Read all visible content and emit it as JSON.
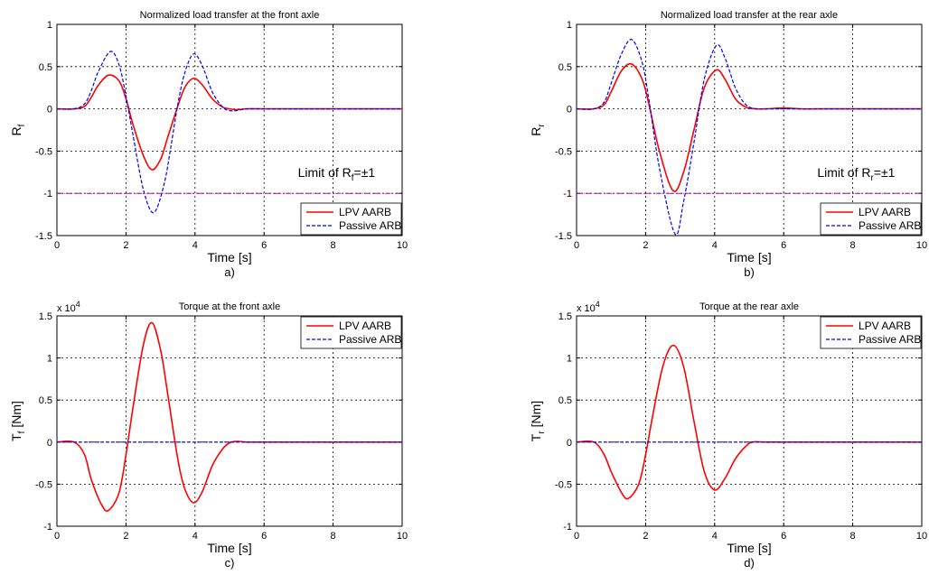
{
  "colors": {
    "lpv": "#ff0000",
    "passive": "#0000ff",
    "limit": "#bf00bf",
    "grid": "#000000"
  },
  "chart_data": [
    {
      "type": "line",
      "title": "Normalized load transfer at the front axle",
      "xlabel": "Time [s]",
      "ylabel": {
        "main": "R",
        "sub": "f"
      },
      "caption": "a)",
      "xlim": [
        0,
        10
      ],
      "ylim": [
        -1.5,
        1
      ],
      "xticks": [
        "0",
        "2",
        "4",
        "6",
        "8",
        "10"
      ],
      "yticks": [
        "-1.5",
        "-1",
        "-0.5",
        "0",
        "0.5",
        "1"
      ],
      "yticks_values": [
        -1.5,
        -1,
        -0.5,
        0,
        0.5,
        1
      ],
      "grid": true,
      "legend": "bottom-right",
      "annotation": {
        "pre": "Limit of R",
        "sub": "f",
        "post": "=±1",
        "x": 8.1,
        "y": -0.75
      },
      "limit_line": -1,
      "series": [
        {
          "name": "LPV AARB",
          "style": "solid",
          "x": [
            0,
            0.5,
            0.8,
            1.0,
            1.2,
            1.5,
            1.8,
            2.0,
            2.2,
            2.5,
            2.75,
            3.0,
            3.2,
            3.5,
            3.7,
            3.95,
            4.2,
            4.5,
            4.8,
            5.0,
            5.2,
            5.5,
            6.0,
            6.5,
            7,
            8,
            9,
            10
          ],
          "y": [
            0,
            0,
            0.03,
            0.14,
            0.28,
            0.4,
            0.33,
            0.12,
            -0.18,
            -0.55,
            -0.72,
            -0.6,
            -0.35,
            0.03,
            0.25,
            0.36,
            0.29,
            0.12,
            0.02,
            0,
            -0.01,
            0,
            0,
            0,
            0,
            0,
            0,
            0
          ]
        },
        {
          "name": "Passive ARB",
          "style": "dashed",
          "x": [
            0,
            0.5,
            0.8,
            1.0,
            1.2,
            1.55,
            1.8,
            2.0,
            2.2,
            2.5,
            2.8,
            3.1,
            3.3,
            3.5,
            3.7,
            3.95,
            4.2,
            4.5,
            4.8,
            5.0,
            5.2,
            5.5,
            6.0,
            6.5,
            7,
            8,
            9,
            10
          ],
          "y": [
            0,
            0,
            0.06,
            0.22,
            0.44,
            0.68,
            0.52,
            0.15,
            -0.3,
            -0.95,
            -1.23,
            -0.9,
            -0.45,
            0.05,
            0.42,
            0.65,
            0.52,
            0.2,
            0.02,
            -0.02,
            -0.02,
            0,
            0,
            0,
            0,
            0,
            0,
            0
          ]
        },
        {
          "name": "",
          "style": "dashdot",
          "limit": true,
          "x": [
            0,
            10
          ],
          "y": [
            -1,
            -1
          ]
        }
      ]
    },
    {
      "type": "line",
      "title": "Normalized load transfer at the rear axle",
      "xlabel": "Time [s]",
      "ylabel": {
        "main": "R",
        "sub": "r"
      },
      "caption": "b)",
      "xlim": [
        0,
        10
      ],
      "ylim": [
        -1.5,
        1
      ],
      "xticks": [
        "0",
        "2",
        "4",
        "6",
        "8",
        "10"
      ],
      "yticks": [
        "-1.5",
        "-1",
        "-0.5",
        "0",
        "0.5",
        "1"
      ],
      "yticks_values": [
        -1.5,
        -1,
        -0.5,
        0,
        0.5,
        1
      ],
      "grid": true,
      "legend": "bottom-right",
      "annotation": {
        "pre": "Limit of R",
        "sub": "r",
        "post": "=±1",
        "x": 8.1,
        "y": -0.75
      },
      "limit_line": -1,
      "series": [
        {
          "name": "LPV AARB",
          "style": "solid",
          "x": [
            0,
            0.5,
            0.8,
            1.0,
            1.3,
            1.6,
            1.9,
            2.1,
            2.4,
            2.8,
            3.1,
            3.4,
            3.7,
            4.05,
            4.3,
            4.6,
            4.9,
            5.2,
            5.5,
            6.0,
            6.5,
            7,
            8,
            9,
            10
          ],
          "y": [
            0,
            0,
            0.05,
            0.2,
            0.45,
            0.53,
            0.35,
            0.05,
            -0.5,
            -0.97,
            -0.75,
            -0.25,
            0.25,
            0.46,
            0.35,
            0.12,
            0.02,
            0,
            0,
            0.01,
            0,
            0,
            0,
            0,
            0
          ]
        },
        {
          "name": "Passive ARB",
          "style": "dashed",
          "x": [
            0,
            0.5,
            0.8,
            1.0,
            1.3,
            1.6,
            1.9,
            2.1,
            2.4,
            2.85,
            3.1,
            3.4,
            3.7,
            4.05,
            4.3,
            4.6,
            4.9,
            5.2,
            5.5,
            6.0,
            6.5,
            7,
            8,
            9,
            10
          ],
          "y": [
            0,
            0,
            0.08,
            0.3,
            0.65,
            0.82,
            0.55,
            0.1,
            -0.7,
            -1.48,
            -1.1,
            -0.4,
            0.35,
            0.75,
            0.6,
            0.25,
            0.05,
            0,
            0,
            0,
            0,
            0,
            0,
            0,
            0
          ]
        },
        {
          "name": "",
          "style": "dashdot",
          "limit": true,
          "x": [
            0,
            10
          ],
          "y": [
            -1,
            -1
          ]
        }
      ]
    },
    {
      "type": "line",
      "title": "Torque at the front axle",
      "xlabel": "Time [s]",
      "ylabel": {
        "main": "T",
        "sub": "f",
        "post": " [Nm]"
      },
      "caption": "c)",
      "multiplier": {
        "base": "x 10",
        "exp": "4"
      },
      "xlim": [
        0,
        10
      ],
      "ylim": [
        -10000,
        15000
      ],
      "xticks": [
        "0",
        "2",
        "4",
        "6",
        "8",
        "10"
      ],
      "yticks": [
        "-1",
        "-0.5",
        "0",
        "0.5",
        "1",
        "1.5"
      ],
      "yticks_values": [
        -10000,
        -5000,
        0,
        5000,
        10000,
        15000
      ],
      "grid": true,
      "legend": "top-right",
      "series": [
        {
          "name": "LPV AARB",
          "style": "solid",
          "x": [
            0,
            0.5,
            0.8,
            1.0,
            1.3,
            1.5,
            1.8,
            2.0,
            2.2,
            2.5,
            2.75,
            3.0,
            3.2,
            3.5,
            3.7,
            3.95,
            4.2,
            4.5,
            4.8,
            5.0,
            5.2,
            5.5,
            6,
            7,
            8,
            9,
            10
          ],
          "y": [
            0,
            0,
            -1500,
            -4500,
            -7500,
            -8100,
            -6000,
            -1500,
            4000,
            11500,
            14200,
            11000,
            6000,
            -2000,
            -5500,
            -7200,
            -6000,
            -2800,
            -800,
            -100,
            100,
            0,
            0,
            0,
            0,
            0,
            0
          ]
        },
        {
          "name": "Passive ARB",
          "style": "dashed",
          "x": [
            0,
            10
          ],
          "y": [
            0,
            0
          ]
        }
      ]
    },
    {
      "type": "line",
      "title": "Torque at the rear axle",
      "xlabel": "Time [s]",
      "ylabel": {
        "main": "T",
        "sub": "r",
        "post": " [Nm]"
      },
      "caption": "d)",
      "multiplier": {
        "base": "x 10",
        "exp": "4"
      },
      "xlim": [
        0,
        10
      ],
      "ylim": [
        -10000,
        15000
      ],
      "xticks": [
        "0",
        "2",
        "4",
        "6",
        "8",
        "10"
      ],
      "yticks": [
        "-1",
        "-0.5",
        "0",
        "0.5",
        "1",
        "1.5"
      ],
      "yticks_values": [
        -10000,
        -5000,
        0,
        5000,
        10000,
        15000
      ],
      "grid": true,
      "legend": "top-right",
      "series": [
        {
          "name": "LPV AARB",
          "style": "solid",
          "x": [
            0,
            0.5,
            0.8,
            1.0,
            1.3,
            1.5,
            1.8,
            2.0,
            2.2,
            2.5,
            2.8,
            3.1,
            3.4,
            3.7,
            4.0,
            4.3,
            4.6,
            4.9,
            5.1,
            5.5,
            6,
            7,
            8,
            9,
            10
          ],
          "y": [
            0,
            0,
            -1500,
            -3500,
            -6000,
            -6700,
            -5000,
            -1500,
            3000,
            9000,
            11500,
            9000,
            2500,
            -3500,
            -5700,
            -4300,
            -2000,
            -500,
            0,
            0,
            0,
            0,
            0,
            0,
            0
          ]
        },
        {
          "name": "Passive ARB",
          "style": "dashed",
          "x": [
            0,
            10
          ],
          "y": [
            0,
            0
          ]
        }
      ]
    }
  ]
}
